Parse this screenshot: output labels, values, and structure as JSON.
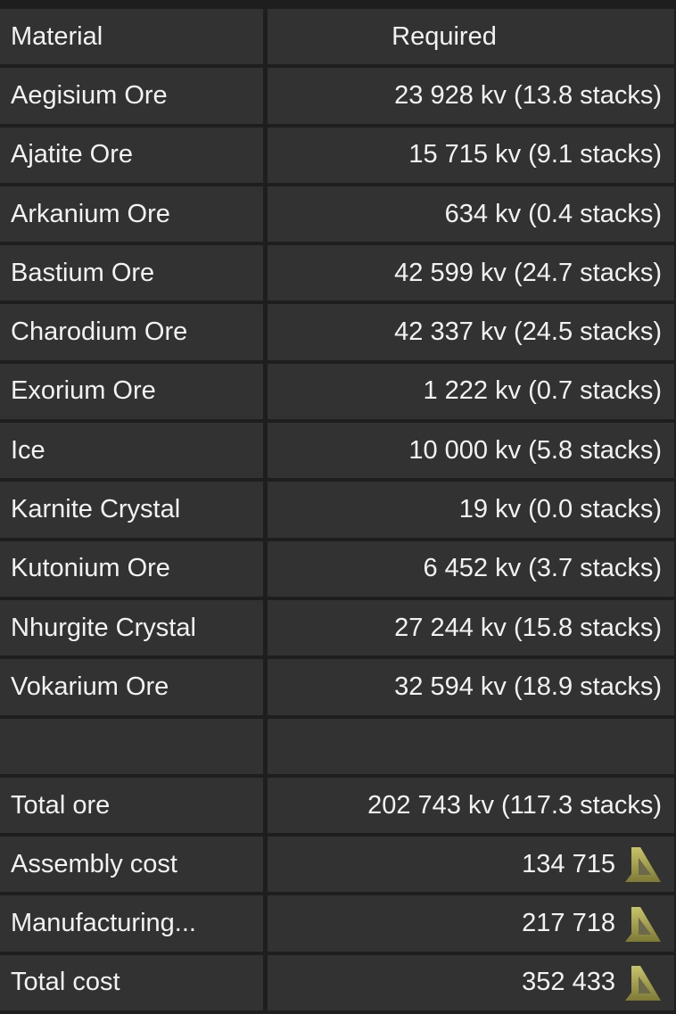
{
  "header": {
    "material": "Material",
    "required": "Required"
  },
  "materials": [
    {
      "name": "Aegisium Ore",
      "required": "23 928 kv (13.8 stacks)"
    },
    {
      "name": "Ajatite Ore",
      "required": "15 715 kv (9.1 stacks)"
    },
    {
      "name": "Arkanium Ore",
      "required": "634 kv (0.4 stacks)"
    },
    {
      "name": "Bastium Ore",
      "required": "42 599 kv (24.7 stacks)"
    },
    {
      "name": "Charodium Ore",
      "required": "42 337 kv (24.5 stacks)"
    },
    {
      "name": "Exorium Ore",
      "required": "1 222 kv (0.7 stacks)"
    },
    {
      "name": "Ice",
      "required": "10 000 kv (5.8 stacks)"
    },
    {
      "name": "Karnite Crystal",
      "required": "19 kv (0.0 stacks)"
    },
    {
      "name": "Kutonium Ore",
      "required": "6 452 kv (3.7 stacks)"
    },
    {
      "name": "Nhurgite Crystal",
      "required": "27 244 kv (15.8 stacks)"
    },
    {
      "name": "Vokarium Ore",
      "required": "32 594 kv (18.9 stacks)"
    }
  ],
  "totals": {
    "total_ore_label": "Total ore",
    "total_ore": "202 743 kv (117.3 stacks)",
    "assembly_label": "Assembly cost",
    "assembly": "134 715",
    "manufacturing_label": "Manufacturing...",
    "manufacturing": "217 718",
    "total_cost_label": "Total cost",
    "total_cost": "352 433"
  },
  "currency_icon": "credits-icon",
  "colors": {
    "background": "#1f1e1f",
    "cell": "#333233",
    "text": "#f2f2f2",
    "currency": "#a8a552"
  }
}
